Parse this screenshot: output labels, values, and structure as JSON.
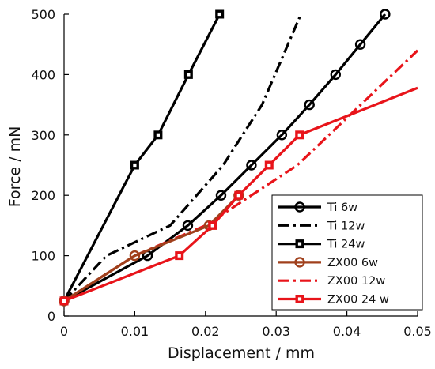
{
  "chart_data": {
    "type": "line",
    "xlabel": "Displacement / mm",
    "ylabel": "Force / mN",
    "xlim": [
      0,
      0.05
    ],
    "ylim": [
      0,
      500
    ],
    "xticks": [
      "0",
      "0.01",
      "0.02",
      "0.03",
      "0.04",
      "0.05"
    ],
    "yticks": [
      "0",
      "100",
      "200",
      "300",
      "400",
      "500"
    ],
    "grid": false,
    "legend_position": "lower-right",
    "series": [
      {
        "name": "Ti 6w",
        "color": "#000000",
        "dash": "solid",
        "marker": "circle",
        "x": [
          0,
          0.0118,
          0.0175,
          0.0222,
          0.0265,
          0.0308,
          0.0347,
          0.0384,
          0.0419,
          0.0454
        ],
        "y": [
          25,
          100,
          150,
          200,
          250,
          300,
          350,
          400,
          450,
          500
        ]
      },
      {
        "name": "Ti 12w",
        "color": "#000000",
        "dash": "dashdot",
        "marker": "none",
        "x": [
          0,
          0.006,
          0.015,
          0.0225,
          0.028,
          0.0335
        ],
        "y": [
          25,
          100,
          150,
          250,
          350,
          500
        ]
      },
      {
        "name": "Ti 24w",
        "color": "#000000",
        "dash": "solid",
        "marker": "square",
        "x": [
          0,
          0.01,
          0.0133,
          0.0176,
          0.022
        ],
        "y": [
          25,
          250,
          300,
          400,
          500
        ]
      },
      {
        "name": "ZX00 6w",
        "color": "#a0401c",
        "dash": "solid",
        "marker": "circle",
        "x": [
          0,
          0.01,
          0.0205,
          0.0247
        ],
        "y": [
          25,
          100,
          150,
          200
        ]
      },
      {
        "name": "ZX00 12w",
        "color": "#e8141a",
        "dash": "dashdot",
        "marker": "none",
        "x": [
          0,
          0.01,
          0.02,
          0.0265,
          0.033,
          0.05
        ],
        "y": [
          25,
          100,
          150,
          200,
          250,
          440
        ]
      },
      {
        "name": "ZX00 24 w",
        "color": "#e8141a",
        "dash": "solid",
        "marker": "square",
        "x": [
          0,
          0.0163,
          0.021,
          0.0247,
          0.029,
          0.0333,
          0.05
        ],
        "y": [
          25,
          100,
          150,
          200,
          250,
          300,
          378
        ]
      }
    ],
    "series_order": [
      1,
      2,
      0,
      4,
      3,
      5
    ]
  }
}
